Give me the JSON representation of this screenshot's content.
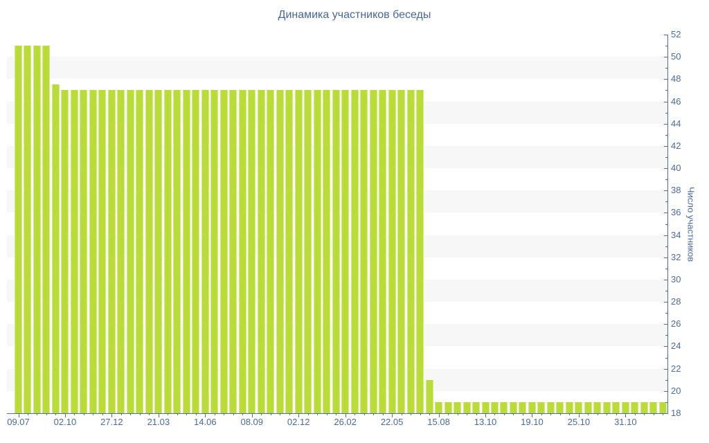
{
  "chart_data": {
    "type": "bar",
    "title": "Динамика участников беседы",
    "ylabel": "Число участников",
    "xlabel": "",
    "ylim": [
      18,
      52
    ],
    "y_tick_step": 2,
    "y_ticks": [
      18,
      20,
      22,
      24,
      26,
      28,
      30,
      32,
      34,
      36,
      38,
      40,
      42,
      44,
      46,
      48,
      50,
      52
    ],
    "x_label_every": 5,
    "x_tick_labels": [
      "09.07",
      "02.10",
      "27.12",
      "21.03",
      "14.06",
      "08.09",
      "02.12",
      "26.02",
      "22.05",
      "15.08",
      "13.10",
      "19.10",
      "25.10",
      "31.10"
    ],
    "values": [
      51,
      51,
      51,
      51,
      47.5,
      47,
      47,
      47,
      47,
      47,
      47,
      47,
      47,
      47,
      47,
      47,
      47,
      47,
      47,
      47,
      47,
      47,
      47,
      47,
      47,
      47,
      47,
      47,
      47,
      47,
      47,
      47,
      47,
      47,
      47,
      47,
      47,
      47,
      47,
      47,
      47,
      47,
      47,
      47,
      21,
      19,
      19,
      19,
      19,
      19,
      19,
      19,
      19,
      19,
      19,
      19,
      19,
      19,
      19,
      19,
      19,
      19,
      19,
      19,
      19,
      19,
      19,
      19,
      19,
      19
    ],
    "legend": null,
    "grid": "horizontal alternating bands, every 2 units",
    "legend_position": "none",
    "axis_side": "right",
    "colors": {
      "bar_fill": "#b9dc37",
      "bar_edge": "#d3e98c",
      "band": "#f7f7f7",
      "axis_line": "#4e6ba8",
      "tick_label": "#4a68a6",
      "title": "#4565a4"
    }
  }
}
